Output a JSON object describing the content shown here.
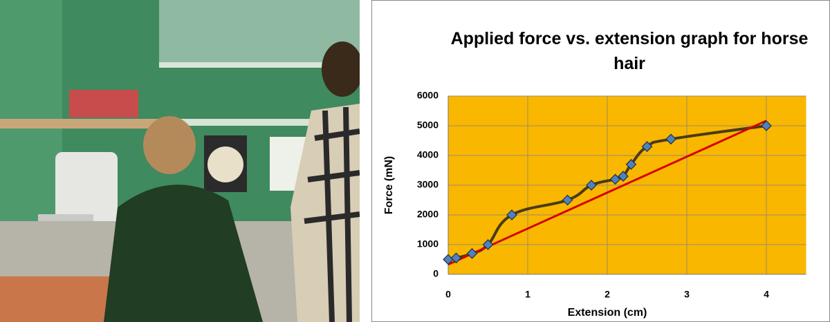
{
  "chart_data": {
    "type": "line",
    "title": "Applied force vs. extension graph for horse hair",
    "x_label": "Extension (cm)",
    "y_label": "Force (mN)",
    "x": [
      0,
      0.1,
      0.3,
      0.5,
      0.8,
      1.5,
      1.8,
      2.1,
      2.2,
      2.3,
      2.5,
      2.8,
      4
    ],
    "values": [
      500,
      550,
      700,
      1000,
      2000,
      2500,
      3000,
      3200,
      3300,
      3700,
      4300,
      4550,
      5000
    ],
    "color": "#4f81bd",
    "line_color": "#4a3b16",
    "trendline": {
      "x": [
        0,
        4
      ],
      "values": [
        330,
        5170
      ],
      "color": "#d40000"
    },
    "xlim": [
      0,
      4.5
    ],
    "xticks": [
      0,
      1,
      2,
      3,
      4
    ],
    "ylim": [
      0,
      6000
    ],
    "yticks": [
      0,
      1000,
      2000,
      3000,
      4000,
      5000,
      6000
    ],
    "grid": true,
    "plot_background": "#f9b700"
  }
}
